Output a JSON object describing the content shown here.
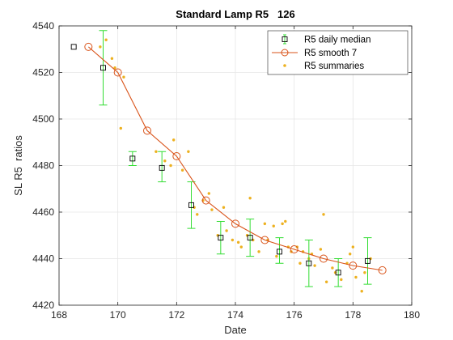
{
  "chart_data": {
    "type": "scatter",
    "title": "Standard Lamp R5   126",
    "xlabel": "Date",
    "ylabel": "SL R5  ratios",
    "xlim": [
      168,
      180
    ],
    "ylim": [
      4420,
      4540
    ],
    "xticks": [
      "168",
      "170",
      "172",
      "174",
      "176",
      "178",
      "180"
    ],
    "yticks": [
      "4420",
      "4440",
      "4460",
      "4480",
      "4500",
      "4520",
      "4540"
    ],
    "grid": true,
    "legend_position": "top-right",
    "colors": {
      "median_marker": "#000000",
      "errorbar": "#33dd33",
      "smooth": "#d95319",
      "summaries": "#edb120"
    },
    "series": [
      {
        "name": "R5 daily median",
        "kind": "errorbar",
        "points": [
          {
            "x": 168.5,
            "y": 4531,
            "lo": 4531,
            "hi": 4531
          },
          {
            "x": 169.5,
            "y": 4522,
            "lo": 4506,
            "hi": 4538
          },
          {
            "x": 170.5,
            "y": 4483,
            "lo": 4480,
            "hi": 4486
          },
          {
            "x": 171.5,
            "y": 4479,
            "lo": 4473,
            "hi": 4486
          },
          {
            "x": 172.5,
            "y": 4463,
            "lo": 4453,
            "hi": 4473
          },
          {
            "x": 173.5,
            "y": 4449,
            "lo": 4442,
            "hi": 4456
          },
          {
            "x": 174.5,
            "y": 4449,
            "lo": 4441,
            "hi": 4457
          },
          {
            "x": 175.5,
            "y": 4443,
            "lo": 4438,
            "hi": 4449
          },
          {
            "x": 176.5,
            "y": 4438,
            "lo": 4428,
            "hi": 4448
          },
          {
            "x": 177.5,
            "y": 4434,
            "lo": 4428,
            "hi": 4440
          },
          {
            "x": 178.5,
            "y": 4439,
            "lo": 4429,
            "hi": 4449
          }
        ]
      },
      {
        "name": "R5 smooth 7",
        "kind": "line",
        "x": [
          169,
          170,
          171,
          172,
          173,
          174,
          175,
          176,
          177,
          178,
          179
        ],
        "y": [
          4531,
          4520,
          4495,
          4484,
          4465,
          4455,
          4448,
          4444,
          4440,
          4437,
          4435
        ]
      },
      {
        "name": "R5 summaries",
        "kind": "scatter",
        "x": [
          169.4,
          169.6,
          169.8,
          169.9,
          170.1,
          170.2,
          171.3,
          171.6,
          171.8,
          171.9,
          172.2,
          172.4,
          172.6,
          172.7,
          172.9,
          173.1,
          173.2,
          173.4,
          173.6,
          173.7,
          173.9,
          174.1,
          174.2,
          174.4,
          174.5,
          174.6,
          174.8,
          175.0,
          175.1,
          175.3,
          175.4,
          175.6,
          175.7,
          175.8,
          175.9,
          176.1,
          176.2,
          176.3,
          176.5,
          176.6,
          176.7,
          176.9,
          177.0,
          177.1,
          177.3,
          177.4,
          177.6,
          177.8,
          177.9,
          178.0,
          178.1,
          178.3,
          178.4,
          178.6
        ],
        "y": [
          4531,
          4534,
          4526,
          4522,
          4496,
          4518,
          4486,
          4482,
          4480,
          4491,
          4478,
          4486,
          4462,
          4459,
          4465,
          4468,
          4461,
          4450,
          4462,
          4452,
          4448,
          4447,
          4445,
          4450,
          4466,
          4448,
          4443,
          4455,
          4448,
          4454,
          4441,
          4455,
          4456,
          4445,
          4443,
          4445,
          4438,
          4443,
          4440,
          4442,
          4437,
          4444,
          4459,
          4430,
          4436,
          4434,
          4431,
          4438,
          4442,
          4445,
          4432,
          4426,
          4434,
          4440
        ]
      }
    ]
  }
}
